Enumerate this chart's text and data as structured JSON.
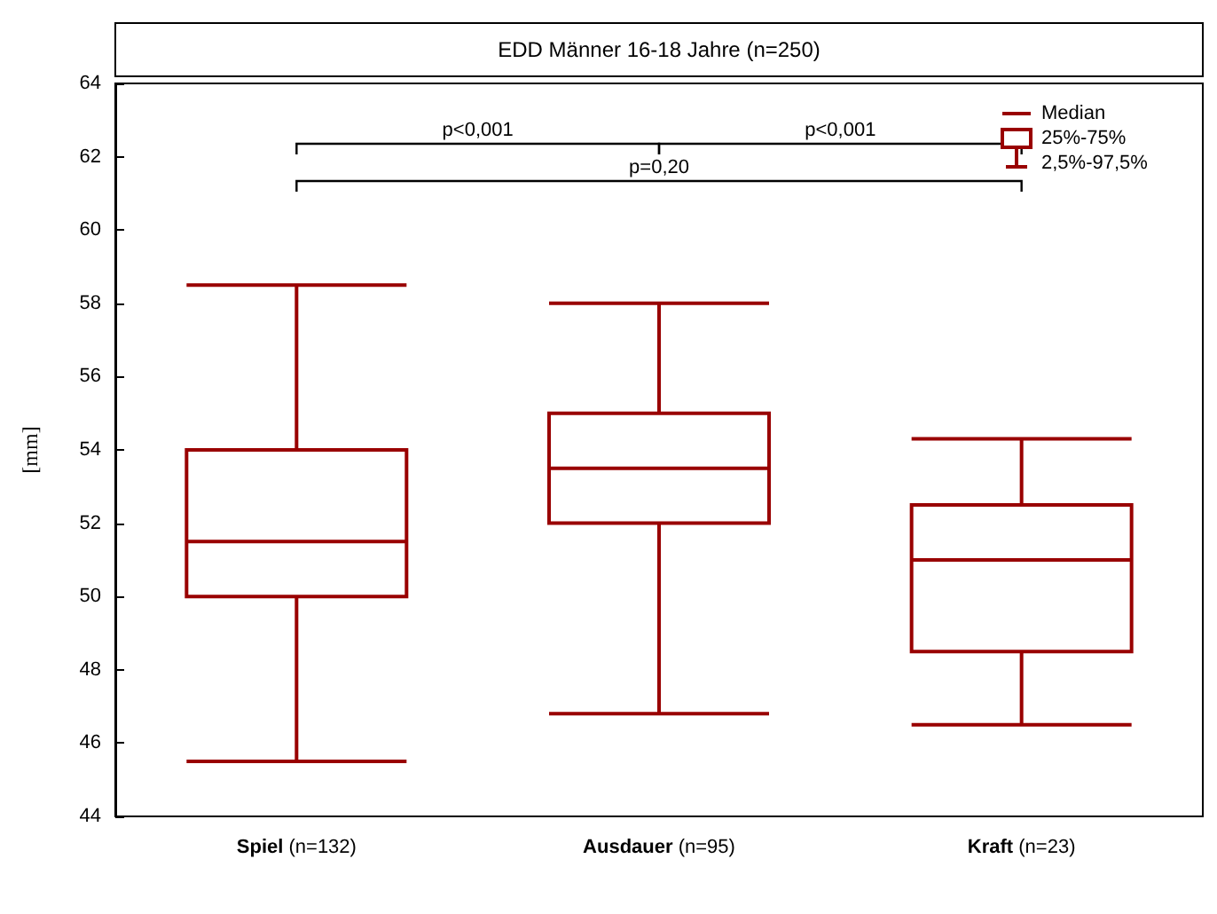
{
  "chart_data": {
    "type": "box",
    "title": "EDD Männer 16-18 Jahre (n=250)",
    "ylabel": "[mm]",
    "categories": [
      "Spiel (n=132)",
      "Ausdauer (n=95)",
      "Kraft (n=23)"
    ],
    "color": "#990000",
    "boxes": [
      {
        "low": 45.5,
        "q1": 50,
        "median": 51.5,
        "q3": 54,
        "high": 58.5
      },
      {
        "low": 46.8,
        "q1": 52,
        "median": 53.5,
        "q3": 55,
        "high": 58
      },
      {
        "low": 46.5,
        "q1": 48.5,
        "median": 51,
        "q3": 52.5,
        "high": 54.3
      }
    ],
    "ylim": [
      44,
      64
    ],
    "yticks": [
      44,
      46,
      48,
      50,
      52,
      54,
      56,
      58,
      60,
      62,
      64
    ],
    "grid": false,
    "annotations": [
      "p<0,001",
      "p<0,001",
      "p=0,20",
      "Median",
      "25%-75%",
      "2,5%-97,5%"
    ]
  }
}
